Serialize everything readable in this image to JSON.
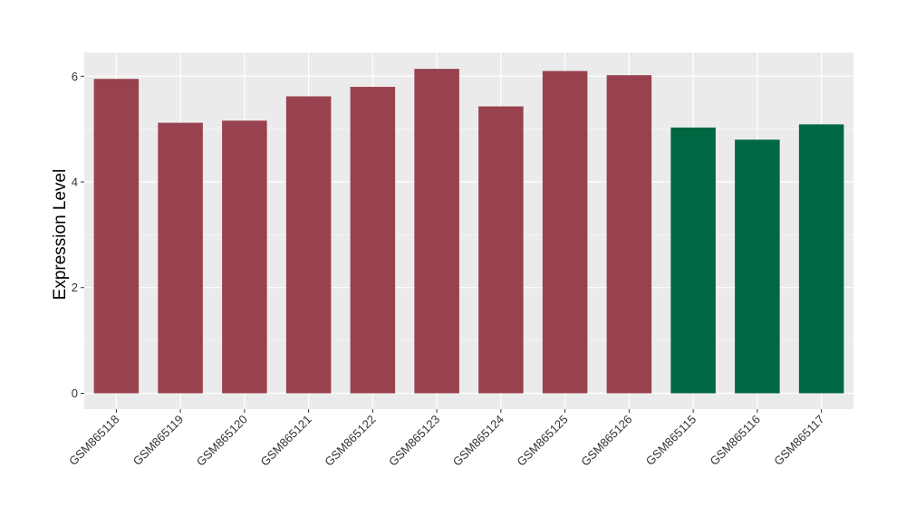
{
  "chart_data": {
    "type": "bar",
    "title": "",
    "xlabel": "",
    "ylabel": "Expression Level",
    "ylim": [
      -0.3,
      6.45
    ],
    "yticks": [
      0,
      2,
      4,
      6
    ],
    "grid": true,
    "legend": "none",
    "categories": [
      "GSM865118",
      "GSM865119",
      "GSM865120",
      "GSM865121",
      "GSM865122",
      "GSM865123",
      "GSM865124",
      "GSM865125",
      "GSM865126",
      "GSM865115",
      "GSM865116",
      "GSM865117"
    ],
    "values": [
      5.95,
      5.12,
      5.16,
      5.62,
      5.8,
      6.14,
      5.43,
      6.1,
      6.02,
      5.03,
      4.8,
      5.09
    ],
    "bar_colors": [
      "#99424f",
      "#99424f",
      "#99424f",
      "#99424f",
      "#99424f",
      "#99424f",
      "#99424f",
      "#99424f",
      "#99424f",
      "#006743",
      "#006743",
      "#006743"
    ],
    "panel_background": "#ebebeb",
    "grid_color": "#ffffff"
  }
}
